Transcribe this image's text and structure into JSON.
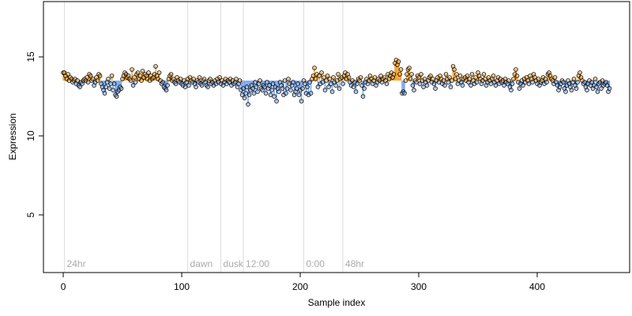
{
  "chart_data": {
    "type": "scatter",
    "xlabel": "Sample index",
    "ylabel": "Expression",
    "xlim": [
      -16.7,
      478
    ],
    "ylim": [
      1.35,
      18.5
    ],
    "xticks": [
      0,
      100,
      200,
      300,
      400
    ],
    "yticks": [
      5,
      10,
      15
    ],
    "baseline": 13.5,
    "above_color": "#f0a030",
    "below_color": "#7aa6e8",
    "annotations": [
      {
        "label": "24hr",
        "x": 1
      },
      {
        "label": "dawn",
        "x": 105
      },
      {
        "label": "dusk",
        "x": 133
      },
      {
        "label": "12:00",
        "x": 152
      },
      {
        "label": "0:00",
        "x": 203
      },
      {
        "label": "48hr",
        "x": 236
      }
    ],
    "values": [
      14.0,
      14.0,
      13.8,
      13.6,
      13.9,
      13.5,
      13.7,
      13.6,
      13.4,
      13.5,
      13.6,
      13.3,
      13.5,
      13.2,
      13.1,
      13.4,
      13.3,
      13.5,
      13.6,
      13.5,
      13.7,
      13.4,
      13.9,
      13.8,
      13.5,
      13.6,
      13.2,
      13.4,
      13.7,
      13.5,
      13.9,
      13.8,
      13.3,
      13.1,
      12.9,
      12.7,
      13.1,
      13.4,
      13.6,
      13.0,
      13.3,
      13.8,
      12.9,
      13.3,
      12.6,
      12.5,
      12.8,
      12.9,
      13.1,
      13.0,
      13.6,
      13.8,
      14.0,
      13.9,
      13.7,
      13.8,
      13.6,
      13.5,
      14.2,
      13.2,
      13.7,
      13.4,
      13.9,
      14.0,
      13.6,
      13.8,
      13.5,
      14.1,
      13.7,
      13.9,
      13.8,
      13.6,
      14.0,
      13.5,
      13.8,
      13.6,
      13.7,
      13.9,
      14.4,
      13.8,
      13.6,
      14.0,
      13.5,
      13.3,
      13.4,
      13.1,
      13.0,
      12.9,
      13.2,
      13.6,
      13.8,
      13.9,
      13.5,
      13.6,
      13.4,
      13.3,
      13.7,
      13.5,
      13.4,
      13.6,
      13.3,
      13.2,
      13.5,
      13.1,
      13.4,
      13.6,
      13.2,
      13.7,
      13.5,
      13.4,
      13.6,
      13.3,
      13.1,
      13.5,
      13.4,
      13.7,
      13.3,
      13.2,
      13.5,
      13.6,
      13.4,
      13.2,
      13.1,
      13.5,
      13.6,
      13.3,
      13.4,
      13.2,
      13.5,
      13.3,
      13.6,
      13.4,
      13.7,
      13.3,
      13.5,
      13.2,
      13.4,
      13.6,
      13.3,
      13.5,
      13.4,
      13.6,
      13.2,
      13.5,
      13.3,
      13.4,
      13.6,
      13.1,
      13.3,
      13.5,
      12.9,
      12.6,
      13.0,
      12.4,
      12.7,
      13.1,
      12.0,
      12.6,
      12.9,
      13.2,
      13.0,
      12.7,
      13.4,
      13.1,
      12.8,
      13.3,
      13.5,
      13.0,
      12.9,
      13.2,
      13.1,
      12.7,
      13.4,
      13.0,
      13.2,
      12.6,
      12.9,
      13.3,
      12.5,
      13.1,
      12.2,
      13.0,
      12.8,
      13.4,
      13.2,
      13.0,
      12.6,
      13.5,
      12.7,
      13.0,
      13.6,
      13.3,
      12.9,
      13.2,
      13.4,
      12.6,
      12.8,
      13.0,
      13.3,
      12.6,
      12.9,
      12.2,
      13.0,
      13.5,
      13.3,
      12.7,
      13.1,
      12.6,
      13.4,
      12.7,
      13.6,
      13.8,
      14.3,
      13.6,
      13.9,
      13.1,
      13.8,
      13.3,
      14.0,
      13.4,
      13.7,
      12.9,
      13.5,
      13.8,
      13.1,
      13.6,
      13.3,
      12.8,
      13.7,
      13.4,
      13.2,
      13.5,
      13.9,
      13.0,
      13.6,
      13.7,
      13.3,
      13.8,
      14.0,
      13.6,
      13.9,
      13.7,
      13.4,
      13.2,
      13.5,
      13.1,
      13.4,
      12.8,
      13.3,
      13.6,
      13.5,
      13.7,
      13.2,
      12.5,
      13.0,
      13.4,
      13.6,
      13.3,
      13.5,
      13.8,
      13.6,
      13.3,
      13.5,
      13.7,
      13.2,
      13.4,
      13.6,
      13.5,
      13.8,
      13.4,
      13.6,
      13.7,
      13.5,
      13.3,
      13.9,
      13.6,
      13.8,
      14.0,
      13.7,
      13.9,
      14.6,
      14.8,
      14.5,
      14.7,
      13.9,
      14.2,
      12.7,
      12.8,
      12.7,
      13.5,
      13.9,
      14.2,
      14.3,
      13.6,
      13.9,
      13.2,
      12.9,
      13.5,
      13.4,
      13.8,
      13.7,
      13.3,
      13.9,
      13.5,
      13.1,
      13.6,
      13.4,
      13.2,
      13.5,
      13.7,
      13.8,
      13.4,
      13.6,
      13.3,
      13.0,
      13.5,
      13.7,
      13.4,
      13.8,
      13.6,
      13.3,
      13.5,
      13.2,
      13.9,
      13.6,
      13.4,
      13.7,
      13.1,
      13.5,
      14.4,
      14.2,
      13.6,
      13.9,
      13.3,
      13.5,
      13.8,
      13.4,
      13.2,
      13.6,
      13.7,
      13.5,
      13.8,
      13.4,
      13.6,
      13.2,
      13.9,
      13.5,
      13.3,
      13.7,
      13.4,
      14.0,
      13.8,
      13.6,
      13.3,
      13.5,
      13.9,
      13.6,
      13.2,
      13.4,
      13.7,
      13.5,
      13.3,
      13.6,
      13.8,
      13.4,
      13.2,
      13.5,
      13.7,
      13.3,
      13.6,
      13.4,
      13.5,
      13.2,
      13.6,
      13.4,
      13.3,
      13.5,
      13.1,
      12.9,
      13.3,
      13.6,
      13.9,
      14.2,
      13.8,
      13.4,
      13.0,
      13.3,
      13.5,
      13.2,
      13.6,
      13.4,
      13.7,
      13.5,
      13.3,
      13.8,
      13.6,
      13.4,
      13.9,
      13.7,
      13.5,
      13.3,
      13.6,
      13.2,
      13.4,
      13.5,
      13.7,
      13.3,
      13.6,
      13.4,
      13.9,
      14.0,
      13.8,
      13.6,
      13.5,
      13.3,
      13.7,
      13.4,
      13.2,
      12.9,
      13.1,
      13.3,
      13.5,
      13.4,
      13.0,
      12.8,
      13.2,
      13.5,
      13.3,
      13.1,
      12.9,
      13.4,
      13.6,
      13.2,
      13.0,
      13.4,
      13.8,
      14.0,
      13.7,
      13.5,
      13.3,
      13.4,
      13.1,
      12.9,
      13.3,
      13.5,
      13.2,
      13.4,
      13.0,
      13.2,
      13.6,
      13.1,
      12.8,
      13.3,
      13.4,
      13.0,
      13.5,
      13.2,
      13.3,
      13.4,
      13.2,
      12.8,
      13.0
    ]
  }
}
